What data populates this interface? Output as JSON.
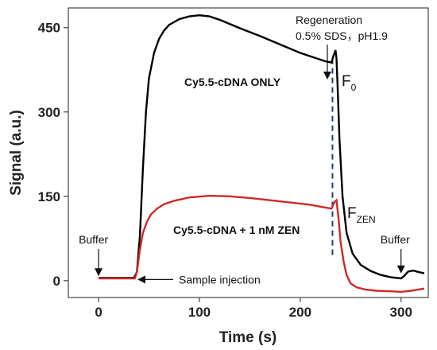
{
  "chart_data": {
    "type": "line",
    "title": "",
    "xlabel": "Time (s)",
    "ylabel": "Signal (a.u.)",
    "xlim": [
      -30,
      327
    ],
    "ylim": [
      -30,
      485
    ],
    "xticks": [
      0,
      100,
      200,
      300
    ],
    "yticks": [
      0,
      150,
      300,
      450
    ],
    "grid": false,
    "colors": {
      "black": "#000000",
      "red": "#cc2a2a",
      "dashed": "#1f3d7a",
      "axis": "#444444"
    },
    "series": [
      {
        "name": "Cy5.5-cDNA ONLY",
        "color": "#000000",
        "x": [
          0,
          35,
          38,
          41,
          44,
          47,
          50,
          55,
          60,
          65,
          70,
          80,
          90,
          100,
          110,
          120,
          140,
          160,
          180,
          200,
          215,
          225,
          231,
          233,
          235,
          236,
          237,
          239,
          242,
          246,
          252,
          260,
          270,
          280,
          290,
          300,
          303,
          307,
          312,
          318,
          323
        ],
        "y": [
          5,
          5,
          15,
          80,
          200,
          300,
          360,
          405,
          430,
          445,
          455,
          465,
          470,
          472,
          470,
          464,
          449,
          435,
          420,
          405,
          396,
          390,
          388,
          400,
          410,
          395,
          350,
          250,
          150,
          85,
          48,
          28,
          17,
          10,
          6,
          4,
          8,
          16,
          18,
          15,
          13
        ]
      },
      {
        "name": "Cy5.5-cDNA + 1 nM ZEN",
        "color": "#cc2a2a",
        "x": [
          0,
          36,
          38,
          41,
          44,
          48,
          52,
          58,
          65,
          75,
          90,
          110,
          130,
          150,
          170,
          190,
          210,
          225,
          231,
          234,
          236,
          238,
          240,
          243,
          246,
          250,
          256,
          265,
          275,
          290,
          300,
          310,
          320,
          323
        ],
        "y": [
          4,
          4,
          15,
          55,
          85,
          105,
          118,
          128,
          136,
          142,
          148,
          151,
          150,
          147,
          143,
          139,
          135,
          130,
          128,
          140,
          143,
          110,
          70,
          35,
          10,
          -5,
          -12,
          -16,
          -18,
          -19,
          -20,
          -18,
          -15,
          -14
        ]
      }
    ],
    "annotations": {
      "buffer_left": {
        "text": "Buffer",
        "x": 0
      },
      "buffer_right": {
        "text": "Buffer",
        "x": 300
      },
      "sample_injection": {
        "text": "Sample injection",
        "x": 37
      },
      "regeneration_line1": "Regeneration",
      "regeneration_line2": "0.5% SDS，pH1.9",
      "regeneration_x": 232,
      "f0_main": "F",
      "f0_sub": "0",
      "fzen_main": "F",
      "fzen_sub": "ZEN"
    }
  }
}
